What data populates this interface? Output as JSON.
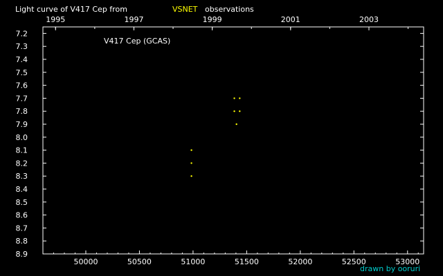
{
  "chart_data": {
    "type": "scatter",
    "title_prefix": "Light curve of V417 Cep from",
    "title_source": "VSNET",
    "title_suffix": "observations",
    "plot_label": "V417 Cep (GCAS)",
    "credit": "drawn by ooruri",
    "x_axis": {
      "label": "",
      "range": [
        49600,
        53150
      ],
      "ticks": [
        50000,
        50500,
        51000,
        51500,
        52000,
        52500,
        53000
      ],
      "tick_labels": [
        "50000",
        "50500",
        "51000",
        "51500",
        "52000",
        "52500",
        "53000"
      ]
    },
    "top_axis": {
      "year_ticks": [
        1995,
        1997,
        1999,
        2001,
        2003
      ],
      "year_labels": [
        "1995",
        "1997",
        "1999",
        "2001",
        "2003"
      ]
    },
    "y_axis": {
      "label": "",
      "range": [
        7.15,
        8.9
      ],
      "inverted": true,
      "ticks": [
        7.2,
        7.3,
        7.4,
        7.5,
        7.6,
        7.7,
        7.8,
        7.9,
        8.0,
        8.1,
        8.2,
        8.3,
        8.4,
        8.5,
        8.6,
        8.7,
        8.8,
        8.9
      ],
      "tick_labels": [
        "7.2",
        "7.3",
        "7.4",
        "7.5",
        "7.6",
        "7.7",
        "7.8",
        "7.9",
        "8.0",
        "8.1",
        "8.2",
        "8.3",
        "8.4",
        "8.5",
        "8.6",
        "8.7",
        "8.8",
        "8.9"
      ]
    },
    "series": [
      {
        "points": [
          {
            "x": 50985,
            "y": 8.1
          },
          {
            "x": 50985,
            "y": 8.2
          },
          {
            "x": 50985,
            "y": 8.3
          },
          {
            "x": 51385,
            "y": 7.7
          },
          {
            "x": 51435,
            "y": 7.7
          },
          {
            "x": 51385,
            "y": 7.8
          },
          {
            "x": 51435,
            "y": 7.8
          },
          {
            "x": 51405,
            "y": 7.9
          }
        ]
      }
    ],
    "colors": {
      "background": "#000000",
      "axes": "#ffffff",
      "points": "#ffff00",
      "title": "#ffffff",
      "source": "#ffff00",
      "credit": "#00cccc"
    }
  }
}
